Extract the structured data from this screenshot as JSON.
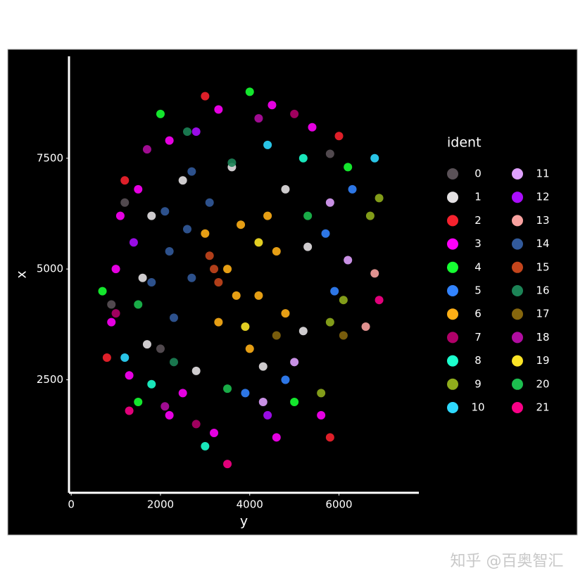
{
  "chart_data": {
    "type": "scatter",
    "x_label": "y",
    "y_label": "x",
    "legend_title": "ident",
    "xlim": [
      -50,
      7790
    ],
    "ylim": [
      -50,
      9800
    ],
    "xticks": [
      0,
      2000,
      4000,
      6000
    ],
    "yticks": [
      2500,
      5000,
      7500
    ],
    "background": "#000000",
    "legend_position": "right",
    "series": [
      {
        "name": "0",
        "color": "#5a5157",
        "x": [
          1200,
          2000,
          5800,
          900
        ],
        "y": [
          6500,
          3200,
          7600,
          4200
        ]
      },
      {
        "name": "1",
        "color": "#e4e1e3",
        "x": [
          1800,
          2500,
          3600,
          4800,
          5300,
          5200,
          4300,
          2800,
          1700,
          1600
        ],
        "y": [
          6200,
          7000,
          7300,
          6800,
          5500,
          3600,
          2800,
          2700,
          3300,
          4800
        ]
      },
      {
        "name": "2",
        "color": "#f6222e",
        "x": [
          800,
          3000,
          6000,
          5800,
          1200
        ],
        "y": [
          3000,
          8900,
          8000,
          1200,
          7000
        ]
      },
      {
        "name": "3",
        "color": "#fe00fa",
        "x": [
          1000,
          900,
          1300,
          2200,
          3200,
          4600,
          5600,
          1500,
          2200,
          3300,
          4500,
          5400,
          1100,
          2500
        ],
        "y": [
          5000,
          3800,
          2600,
          1700,
          1300,
          1200,
          1700,
          6800,
          7900,
          8600,
          8700,
          8200,
          6200,
          2200
        ]
      },
      {
        "name": "4",
        "color": "#16ff32",
        "x": [
          700,
          2000,
          4000,
          5000,
          1500,
          6200
        ],
        "y": [
          4500,
          8500,
          9000,
          2000,
          2000,
          7300
        ]
      },
      {
        "name": "5",
        "color": "#3283fe",
        "x": [
          5700,
          5900,
          4800,
          6300,
          3900
        ],
        "y": [
          5800,
          4500,
          2500,
          6800,
          2200
        ]
      },
      {
        "name": "6",
        "color": "#feaf16",
        "x": [
          3500,
          3800,
          4200,
          3300,
          4600,
          4000,
          3000,
          4800,
          3700,
          4400
        ],
        "y": [
          5000,
          6000,
          4400,
          3800,
          5400,
          3200,
          5800,
          4000,
          4400,
          6200
        ]
      },
      {
        "name": "7",
        "color": "#b00068",
        "x": [
          1000,
          2800,
          5000
        ],
        "y": [
          4000,
          1500,
          8500
        ]
      },
      {
        "name": "8",
        "color": "#1cffce",
        "x": [
          1800,
          5200,
          3000
        ],
        "y": [
          2400,
          7500,
          1000
        ]
      },
      {
        "name": "9",
        "color": "#90ad1c",
        "x": [
          6700,
          6900,
          6100,
          5800,
          5600
        ],
        "y": [
          6200,
          6600,
          4300,
          3800,
          2200
        ]
      },
      {
        "name": "10",
        "color": "#2ed9ff",
        "x": [
          6800,
          1200,
          4400
        ],
        "y": [
          7500,
          3000,
          7800
        ]
      },
      {
        "name": "11",
        "color": "#dea0fd",
        "x": [
          5800,
          6200,
          5000,
          4300
        ],
        "y": [
          6500,
          5200,
          2900,
          2000
        ]
      },
      {
        "name": "12",
        "color": "#aa0dfe",
        "x": [
          4400,
          2800,
          1400
        ],
        "y": [
          1700,
          8100,
          5600
        ]
      },
      {
        "name": "13",
        "color": "#f8a19f",
        "x": [
          6600,
          6800
        ],
        "y": [
          3700,
          4900
        ]
      },
      {
        "name": "14",
        "color": "#325a9b",
        "x": [
          1800,
          2200,
          2700,
          2300,
          2100,
          2700,
          3100,
          2600
        ],
        "y": [
          4700,
          5400,
          4800,
          3900,
          6300,
          7200,
          6500,
          5900
        ]
      },
      {
        "name": "15",
        "color": "#c4451c",
        "x": [
          3200,
          3100,
          3300
        ],
        "y": [
          5000,
          5300,
          4700
        ]
      },
      {
        "name": "16",
        "color": "#1c8356",
        "x": [
          3600,
          2300,
          2600
        ],
        "y": [
          7400,
          2900,
          8100
        ]
      },
      {
        "name": "17",
        "color": "#85660d",
        "x": [
          6100,
          4600
        ],
        "y": [
          3500,
          3500
        ]
      },
      {
        "name": "18",
        "color": "#b10da1",
        "x": [
          1700,
          4200,
          2100
        ],
        "y": [
          7700,
          8400,
          1900
        ]
      },
      {
        "name": "19",
        "color": "#fbe426",
        "x": [
          4200,
          3900
        ],
        "y": [
          5600,
          3700
        ]
      },
      {
        "name": "20",
        "color": "#1cbe4f",
        "x": [
          1500,
          3500,
          5300
        ],
        "y": [
          4200,
          2300,
          6200
        ]
      },
      {
        "name": "21",
        "color": "#fa0087",
        "x": [
          6900,
          1300,
          3500
        ],
        "y": [
          4300,
          1800,
          600
        ]
      }
    ]
  },
  "watermark": "知乎 @百奥智汇"
}
